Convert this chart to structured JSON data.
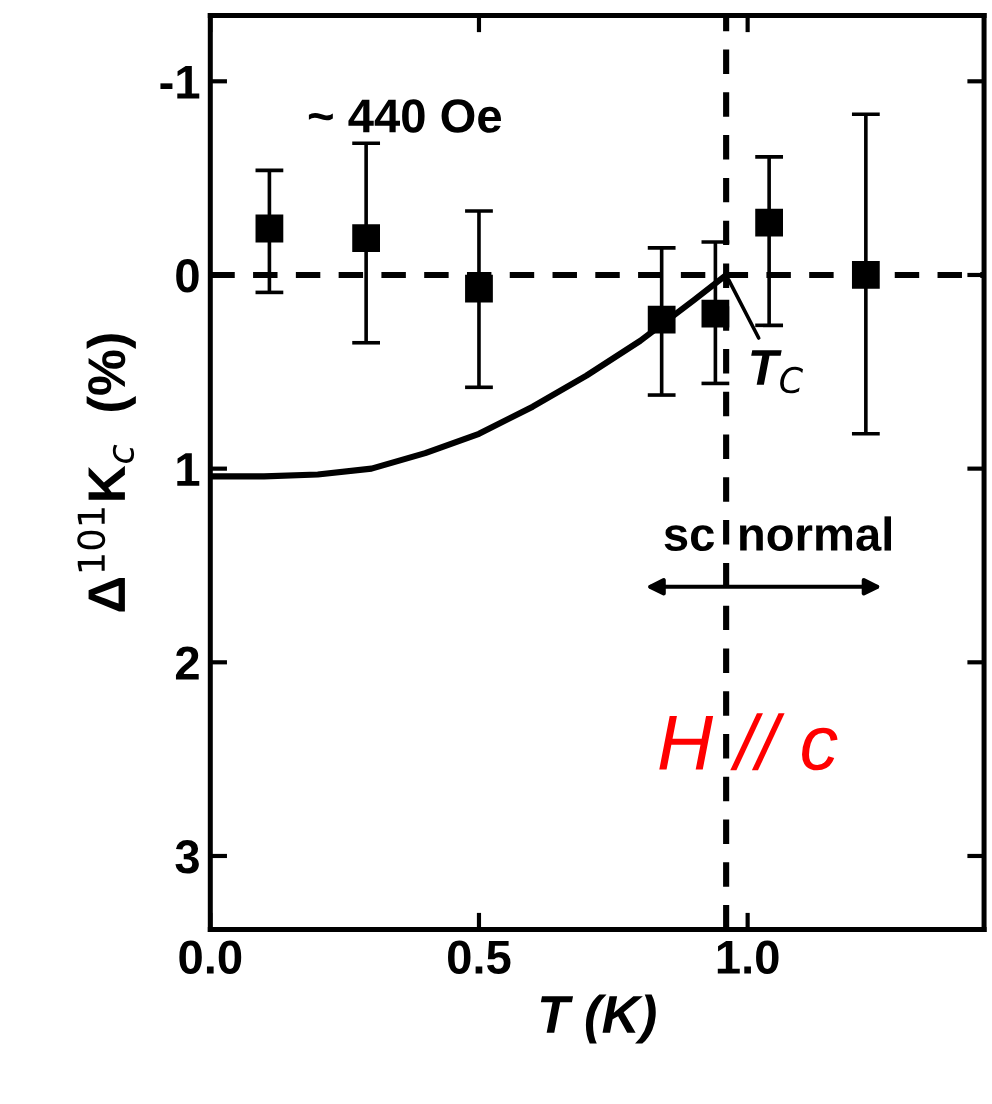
{
  "chart_data": {
    "type": "scatter",
    "xlabel": "T (K)",
    "ylabel": "Δ$^{101}$K$_{c}$  (%)",
    "xlim": [
      0,
      1.44
    ],
    "ylim": [
      3.38,
      -1.34
    ],
    "xticks": [
      {
        "value": 0,
        "label": "0.0"
      },
      0.5,
      {
        "value": 1,
        "label": "1.0"
      }
    ],
    "yticks": [
      {
        "value": -1,
        "label": "-1"
      },
      0,
      1,
      2,
      3
    ],
    "series": [
      {
        "marker": "square",
        "color": "#000000",
        "x": [
          0.11,
          0.29,
          0.5,
          0.84,
          0.94,
          1.04,
          1.22
        ],
        "values": [
          -0.24,
          -0.19,
          0.07,
          0.23,
          0.2,
          -0.27,
          0.0
        ],
        "errors": [
          [
            -0.54,
            0.09
          ],
          [
            -0.68,
            0.35
          ],
          [
            -0.33,
            0.58
          ],
          [
            -0.14,
            0.62
          ],
          [
            -0.17,
            0.56
          ],
          [
            -0.61,
            0.26
          ],
          [
            -0.83,
            0.82
          ]
        ]
      },
      {
        "type": "line",
        "color": "#000000",
        "line_style": "solid",
        "x": [
          0,
          0.1,
          0.2,
          0.3,
          0.4,
          0.5,
          0.6,
          0.7,
          0.8,
          0.9,
          0.96
        ],
        "values": [
          1.04,
          1.04,
          1.03,
          1.0,
          0.92,
          0.82,
          0.68,
          0.52,
          0.34,
          0.13,
          0.0
        ]
      }
    ],
    "ref_lines": [
      {
        "axis": "y",
        "value": 0,
        "line_style": "dashed",
        "color": "#000000"
      },
      {
        "axis": "x",
        "value": 0.96,
        "line_style": "dashed",
        "color": "#000000"
      }
    ],
    "annotations": [
      "~ 440 Oe",
      {
        "text": "T$_{C}$",
        "x": 0.96,
        "y": 0
      },
      "sc",
      "normal",
      "H // c"
    ]
  }
}
